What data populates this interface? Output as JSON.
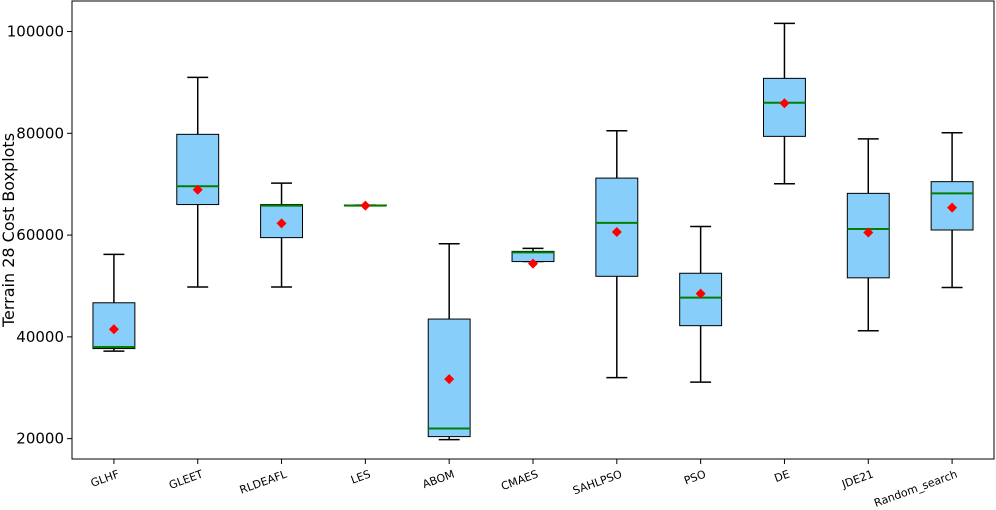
{
  "chart_data": {
    "type": "boxplot",
    "title": "",
    "xlabel": "",
    "ylabel": "Terrain 28 Cost Boxplots",
    "ylim": [
      16000,
      106000
    ],
    "yticks": [
      20000,
      40000,
      60000,
      80000,
      100000
    ],
    "ytick_labels": [
      "20000",
      "40000",
      "60000",
      "80000",
      "100000"
    ],
    "categories": [
      "GLHF",
      "GLEET",
      "RLDEAFL",
      "LES",
      "ABOM",
      "CMAES",
      "SAHLPSO",
      "PSO",
      "DE",
      "JDE21",
      "Random_search"
    ],
    "series": [
      {
        "name": "GLHF",
        "whisker_low": 37200,
        "q1": 37700,
        "median": 38000,
        "q3": 46700,
        "whisker_high": 56200,
        "mean": 41500
      },
      {
        "name": "GLEET",
        "whisker_low": 49800,
        "q1": 66000,
        "median": 69600,
        "q3": 79800,
        "whisker_high": 91000,
        "mean": 68900
      },
      {
        "name": "RLDEAFL",
        "whisker_low": 49800,
        "q1": 59500,
        "median": 65800,
        "q3": 66000,
        "whisker_high": 70200,
        "mean": 62300
      },
      {
        "name": "LES",
        "whisker_low": 65800,
        "q1": 65800,
        "median": 65800,
        "q3": 65900,
        "whisker_high": 65900,
        "mean": 65800
      },
      {
        "name": "ABOM",
        "whisker_low": 19800,
        "q1": 20400,
        "median": 22000,
        "q3": 43500,
        "whisker_high": 58300,
        "mean": 31700
      },
      {
        "name": "CMAES",
        "whisker_low": 54800,
        "q1": 54800,
        "median": 56600,
        "q3": 56800,
        "whisker_high": 57400,
        "mean": 54400
      },
      {
        "name": "SAHLPSO",
        "whisker_low": 32000,
        "q1": 51900,
        "median": 62400,
        "q3": 71200,
        "whisker_high": 80500,
        "mean": 60600
      },
      {
        "name": "PSO",
        "whisker_low": 31100,
        "q1": 42200,
        "median": 47700,
        "q3": 52500,
        "whisker_high": 61700,
        "mean": 48500
      },
      {
        "name": "DE",
        "whisker_low": 70100,
        "q1": 79400,
        "median": 86000,
        "q3": 90800,
        "whisker_high": 101600,
        "mean": 85900
      },
      {
        "name": "JDE21",
        "whisker_low": 41200,
        "q1": 51600,
        "median": 61200,
        "q3": 68200,
        "whisker_high": 78900,
        "mean": 60500
      },
      {
        "name": "Random_search",
        "whisker_low": 49700,
        "q1": 61000,
        "median": 68200,
        "q3": 70500,
        "whisker_high": 80100,
        "mean": 65400
      }
    ],
    "colors": {
      "box_fill": "#87CEFA",
      "box_edge": "#000000",
      "median": "#008000",
      "mean_marker": "#FF0000",
      "whisker": "#000000"
    },
    "mean_marker_shape": "diamond",
    "grid": false,
    "legend": "none"
  }
}
